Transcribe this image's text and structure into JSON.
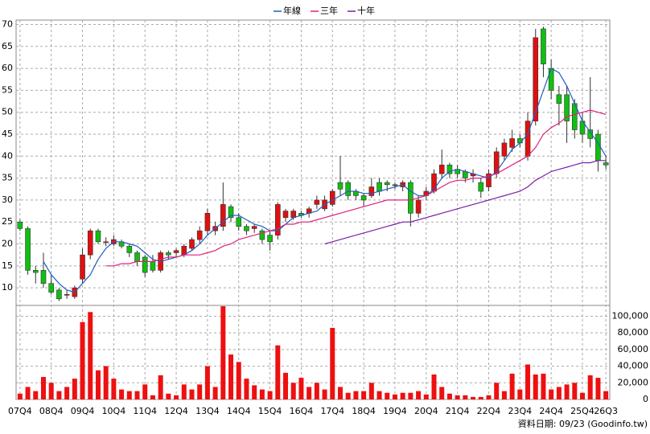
{
  "chart_data": {
    "type": "candlestick",
    "legend_position": "top",
    "categories": [
      "07Q4",
      null,
      null,
      null,
      "08Q4",
      null,
      null,
      null,
      "09Q4",
      null,
      null,
      null,
      "10Q4",
      null,
      null,
      null,
      "11Q4",
      null,
      null,
      null,
      "12Q4",
      null,
      null,
      null,
      "13Q4",
      null,
      null,
      null,
      "14Q4",
      null,
      null,
      null,
      "15Q4",
      null,
      null,
      null,
      "16Q4",
      null,
      null,
      null,
      "17Q4",
      null,
      null,
      null,
      "18Q4",
      null,
      null,
      null,
      "19Q4",
      null,
      null,
      null,
      "20Q4",
      null,
      null,
      null,
      "21Q4",
      null,
      null,
      null,
      "22Q4",
      null,
      null,
      null,
      "23Q4",
      null,
      null,
      null,
      "24Q4",
      null,
      null,
      null,
      "25Q4",
      null,
      null,
      "26Q3"
    ],
    "open": [
      25,
      23.5,
      14,
      14,
      11,
      9.5,
      8.5,
      8,
      12,
      17.5,
      23,
      20.5,
      20,
      20.5,
      19.5,
      18,
      17,
      16,
      14,
      18,
      18,
      17.5,
      19,
      21,
      23,
      23,
      24,
      28.5,
      26,
      24,
      23.5,
      23,
      22,
      22,
      26,
      26,
      27,
      27,
      29,
      28,
      29,
      34,
      34,
      32,
      31,
      31,
      34,
      34,
      33.5,
      33,
      34,
      27,
      31,
      32,
      36,
      38,
      37,
      36.5,
      35.5,
      34,
      33,
      36,
      40,
      42,
      44,
      40,
      48,
      69,
      60,
      54,
      54,
      52,
      48,
      46,
      45,
      38.5
    ],
    "close": [
      23.5,
      14,
      13.5,
      11,
      9,
      7.5,
      8.5,
      10,
      17.5,
      23,
      20.5,
      20.5,
      21,
      19.5,
      18,
      16,
      13.5,
      14,
      18,
      17.5,
      18.5,
      19.5,
      21,
      23,
      27,
      24,
      29,
      26,
      24,
      23,
      24,
      21,
      20.5,
      29,
      27.5,
      27.5,
      26.5,
      28,
      30,
      30,
      32,
      32.5,
      31,
      31,
      30,
      33,
      32,
      33.5,
      33.5,
      34,
      27,
      30,
      32,
      36,
      38,
      36,
      36,
      35,
      36,
      32,
      36,
      41,
      43,
      44,
      43,
      48,
      67,
      61,
      55,
      52,
      48,
      46,
      45,
      44,
      39,
      38
    ],
    "high": [
      25.5,
      24,
      15,
      18,
      13,
      10,
      9.5,
      10.5,
      19,
      23.5,
      23.5,
      21.5,
      22,
      21,
      20,
      18.5,
      17.5,
      17.5,
      18.5,
      18.5,
      19,
      20,
      21.5,
      24,
      28,
      25,
      34,
      29,
      27,
      24.5,
      24.5,
      23.5,
      23,
      29.5,
      28,
      28,
      27.5,
      28.5,
      31,
      31,
      32.5,
      40,
      34.5,
      32.5,
      31.5,
      35,
      35,
      34.5,
      34,
      34.5,
      34.5,
      31,
      33,
      37,
      41.5,
      38.5,
      38,
      37,
      37,
      35,
      37,
      42,
      44,
      46,
      45,
      50,
      69,
      69.5,
      62,
      56,
      56,
      53,
      50,
      58,
      46,
      40
    ],
    "low": [
      23,
      13,
      11,
      10,
      8.5,
      7,
      7.5,
      7.5,
      11,
      16.5,
      20,
      19.5,
      19.5,
      19,
      17,
      15,
      12.5,
      13.5,
      13.5,
      16.5,
      17,
      17,
      18.5,
      20,
      22,
      22,
      23,
      25,
      23,
      22,
      22.5,
      20,
      18.5,
      21,
      25,
      25.5,
      26,
      26,
      28,
      27.5,
      28.5,
      31,
      30,
      30,
      28.5,
      30.5,
      31,
      32,
      32.5,
      32,
      24,
      26,
      30,
      31.5,
      35,
      35,
      35,
      34,
      34,
      30.5,
      32,
      35,
      39,
      41,
      42,
      39,
      47,
      58,
      53,
      47,
      43,
      44,
      43,
      42,
      36.5,
      37
    ],
    "series": [
      {
        "name": "年線",
        "color": "#1f5fbf",
        "values": [
          null,
          null,
          null,
          16,
          13,
          11,
          9.5,
          9,
          11,
          13,
          16.5,
          19,
          20.5,
          20.5,
          20,
          19.5,
          18,
          16.5,
          16,
          16.5,
          17,
          17.5,
          18.5,
          20,
          22,
          23.5,
          25,
          26.5,
          26.5,
          25.5,
          24.5,
          24,
          23,
          23,
          24.5,
          26,
          26.5,
          27,
          27.5,
          29,
          30,
          31,
          32,
          32,
          31.5,
          31.5,
          32,
          32.5,
          33,
          33.5,
          32,
          31,
          31,
          32.5,
          35,
          36.5,
          37,
          36.5,
          36,
          35.5,
          35,
          36.5,
          39,
          41.5,
          43,
          45,
          50,
          55,
          60,
          59,
          56,
          52,
          48,
          45.5,
          43,
          40
        ]
      },
      {
        "name": "三年",
        "color": "#e0207a",
        "values": [
          null,
          null,
          null,
          null,
          null,
          null,
          null,
          null,
          null,
          null,
          null,
          15,
          15,
          15.5,
          15.5,
          16,
          16,
          16,
          16.5,
          17,
          17,
          17.5,
          17.5,
          17.5,
          18,
          18.5,
          19.5,
          20,
          21,
          21.5,
          22,
          22.5,
          23,
          23.5,
          24.5,
          24.5,
          25,
          25,
          25.5,
          26,
          26.5,
          27,
          27.5,
          28,
          28.5,
          29,
          29.5,
          30,
          30,
          30,
          30,
          30.5,
          31,
          32,
          33,
          34,
          34.5,
          34.5,
          35,
          35,
          35.5,
          36,
          37,
          38,
          39,
          40,
          42,
          45,
          46.5,
          47.5,
          49,
          49.5,
          50,
          50.5,
          50,
          49.5
        ]
      },
      {
        "name": "十年",
        "color": "#7a1fa8",
        "values": [
          null,
          null,
          null,
          null,
          null,
          null,
          null,
          null,
          null,
          null,
          null,
          null,
          null,
          null,
          null,
          null,
          null,
          null,
          null,
          null,
          null,
          null,
          null,
          null,
          null,
          null,
          null,
          null,
          null,
          null,
          null,
          null,
          null,
          null,
          null,
          null,
          null,
          null,
          null,
          20,
          20.5,
          21,
          21.5,
          22,
          22.5,
          23,
          23.5,
          24,
          24.5,
          25,
          25,
          25.5,
          26,
          26.5,
          27,
          27.5,
          28,
          28.5,
          29,
          29.5,
          30,
          30.5,
          31,
          31.5,
          32,
          33,
          34.5,
          35.5,
          36.5,
          37,
          37.5,
          38,
          38.5,
          38.5,
          39,
          39
        ]
      }
    ],
    "volume": [
      7000,
      15000,
      10000,
      27000,
      20000,
      10000,
      15000,
      25000,
      93000,
      105000,
      35000,
      40000,
      25000,
      12000,
      10000,
      10000,
      18000,
      5000,
      29000,
      7000,
      5000,
      18000,
      12000,
      18000,
      40000,
      15000,
      112000,
      54000,
      45000,
      25000,
      17000,
      12000,
      10000,
      65000,
      32000,
      20000,
      26000,
      15000,
      20000,
      12000,
      86000,
      15000,
      8000,
      10000,
      10000,
      20000,
      10000,
      8000,
      6000,
      8000,
      8000,
      10000,
      6000,
      30000,
      15000,
      7000,
      5000,
      5000,
      3000,
      3000,
      5000,
      20000,
      10000,
      31000,
      12000,
      42000,
      30000,
      31000,
      12000,
      15000,
      18000,
      20000,
      8000,
      29000,
      26000,
      10000
    ],
    "up_color": "#e01010",
    "down_color": "#10c010",
    "volume_color": "#ee1010",
    "ylim": [
      6,
      71
    ],
    "yticks": [
      10,
      15,
      20,
      25,
      30,
      35,
      40,
      45,
      50,
      55,
      60,
      65,
      70
    ],
    "volume_ylim": [
      0,
      113000
    ],
    "volume_yticks": [
      0,
      {
        "value": 20000,
        "label": "20,000"
      },
      {
        "value": 40000,
        "label": "40,000"
      },
      {
        "value": 60000,
        "label": "60,000"
      },
      {
        "value": 80000,
        "label": "80,000"
      },
      {
        "value": 100000,
        "label": "100,000"
      }
    ],
    "grid": true,
    "footer": "資料日期: 09/23 (Goodinfo.tw)"
  }
}
